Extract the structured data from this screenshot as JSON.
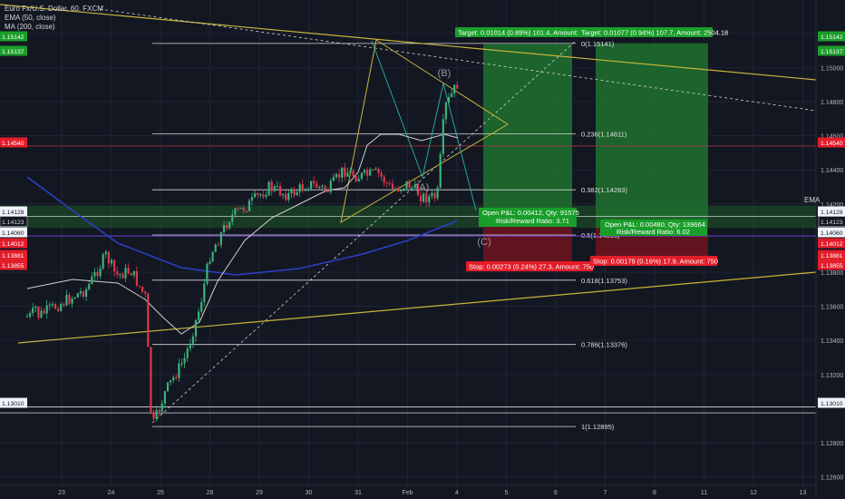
{
  "header": {
    "symbol": "Euro Fx/U.S. Dollar, 60, FXCM",
    "indicators": [
      "EMA (50, close)",
      "MA (200, close)"
    ]
  },
  "right_axis_tag": "EMA",
  "colors": {
    "background": "#131722",
    "grid": "#1f2433",
    "candle_up": "#3bb27a",
    "candle_down": "#e0374a",
    "ema": "#cfcfcf",
    "ma": "#2b40c8",
    "yellow": "#c9b43a",
    "target_zone": "#1e6b2e",
    "stop_zone": "#6a1420",
    "label_green": "#1a9e2a",
    "label_red": "#e31d2a"
  },
  "chart_data": {
    "type": "candlestick",
    "y_axis_ticks": [
      "1.15200",
      "1.15000",
      "1.14800",
      "1.14600",
      "1.14400",
      "1.14200",
      "1.13800",
      "1.13600",
      "1.13400",
      "1.13200",
      "1.12800",
      "1.12600"
    ],
    "x_axis_ticks": [
      "23",
      "24",
      "25",
      "28",
      "29",
      "30",
      "31",
      "Feb",
      "4",
      "5",
      "6",
      "7",
      "8",
      "11",
      "12",
      "13"
    ],
    "price_tags": [
      {
        "value": "1.15142",
        "style": "green"
      },
      {
        "value": "1.15137",
        "style": "green"
      },
      {
        "value": "1.14540",
        "style": "red"
      },
      {
        "value": "1.14128",
        "style": "white"
      },
      {
        "value": "1.14123",
        "style": "dark"
      },
      {
        "value": "1.14060",
        "style": "white"
      },
      {
        "value": "1.14012",
        "style": "red"
      },
      {
        "value": "1.13881",
        "style": "red"
      },
      {
        "value": "1.13855",
        "style": "red"
      },
      {
        "value": "1.13010",
        "style": "white"
      }
    ],
    "fibonacci": [
      {
        "label": "0(1.15141)",
        "price": 1.15141
      },
      {
        "label": "0.236(1.14611)",
        "price": 1.14611
      },
      {
        "label": "0.382(1.14283)",
        "price": 1.14283
      },
      {
        "label": "0.5(1.14018)",
        "price": 1.14018
      },
      {
        "label": "0.618(1.13753)",
        "price": 1.13753
      },
      {
        "label": "0.786(1.13376)",
        "price": 1.13376
      },
      {
        "label": "1(1.12895)",
        "price": 1.12895
      }
    ],
    "pattern_labels": [
      "(B)",
      "(A)",
      "(C)"
    ],
    "positions": [
      {
        "target": "Target: 0.01014 (0.89%) 101.4, Amount: 2401.72",
        "stop": "Stop: 0.00273 (0.24%) 27.3, Amount: 750",
        "pnl": "Open P&L: 0.00412, Qty: 91575",
        "rr": "Risk/Reward Ratio: 3.71"
      },
      {
        "target": "Target: 0.01077 (0.94%) 107.7, Amount: 2504.18",
        "stop": "Stop: 0.00179 (0.16%) 17.9, Amount: 750",
        "pnl": "Open P&L: 0.00480, Qty: 139664",
        "rr": "Risk/Reward Ratio: 6.02"
      }
    ],
    "price_path": [
      [
        "22.5",
        1.1354
      ],
      [
        "23.0",
        1.1362
      ],
      [
        "23.5",
        1.137
      ],
      [
        "23.9",
        1.139
      ],
      [
        "24.1",
        1.1378
      ],
      [
        "24.4",
        1.1381
      ],
      [
        "24.7",
        1.1365
      ],
      [
        "24.8",
        1.13
      ],
      [
        "24.85",
        1.129
      ],
      [
        "25.1",
        1.131
      ],
      [
        "25.5",
        1.133
      ],
      [
        "25.8",
        1.136
      ],
      [
        "26.0",
        1.139
      ],
      [
        "26.4",
        1.1412
      ],
      [
        "26.8",
        1.142
      ],
      [
        "27.2",
        1.143
      ],
      [
        "27.6",
        1.1425
      ],
      [
        "28.0",
        1.1432
      ],
      [
        "28.4",
        1.1428
      ],
      [
        "28.7",
        1.144
      ],
      [
        "29.0",
        1.1436
      ],
      [
        "29.4",
        1.1438
      ],
      [
        "29.7",
        1.1428
      ],
      [
        "30.0",
        1.1432
      ],
      [
        "30.3",
        1.1424
      ],
      [
        "30.6",
        1.1424
      ],
      [
        "30.75",
        1.1476
      ],
      [
        "31.0",
        1.149
      ],
      [
        "31.2",
        1.15
      ],
      [
        "31.35",
        1.1514
      ],
      [
        "31.6",
        1.149
      ],
      [
        "31.8",
        1.1468
      ],
      [
        "32.0",
        1.1448
      ],
      [
        "32.3",
        1.1442
      ],
      [
        "32.6",
        1.1438
      ],
      [
        "32.8",
        1.1452
      ],
      [
        "33.0",
        1.147
      ],
      [
        "33.2",
        1.1486
      ],
      [
        "33.4",
        1.1475
      ],
      [
        "33.6",
        1.1458
      ],
      [
        "33.75",
        1.1454
      ]
    ]
  }
}
